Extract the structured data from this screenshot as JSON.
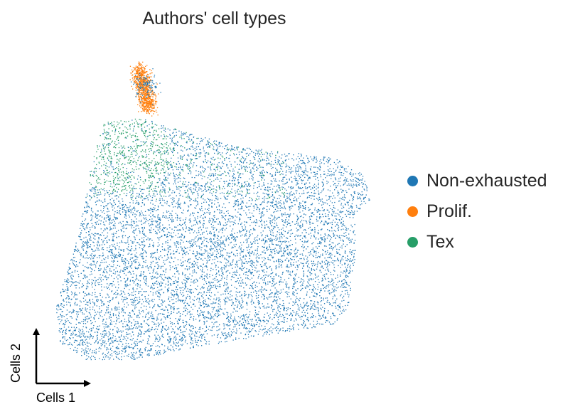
{
  "chart_data": {
    "type": "scatter",
    "title": "Authors' cell types",
    "xlabel": "Cells 1",
    "ylabel": "Cells 2",
    "axes": "arrows only, no ticks",
    "legend_position": "right",
    "series": [
      {
        "name": "Non-exhausted",
        "color": "#1f77b4",
        "region": "main body"
      },
      {
        "name": "Prolif.",
        "color": "#ff7f0e",
        "region": "top lobe"
      },
      {
        "name": "Tex",
        "color": "#279e68",
        "region": "upper-left band"
      }
    ]
  }
}
